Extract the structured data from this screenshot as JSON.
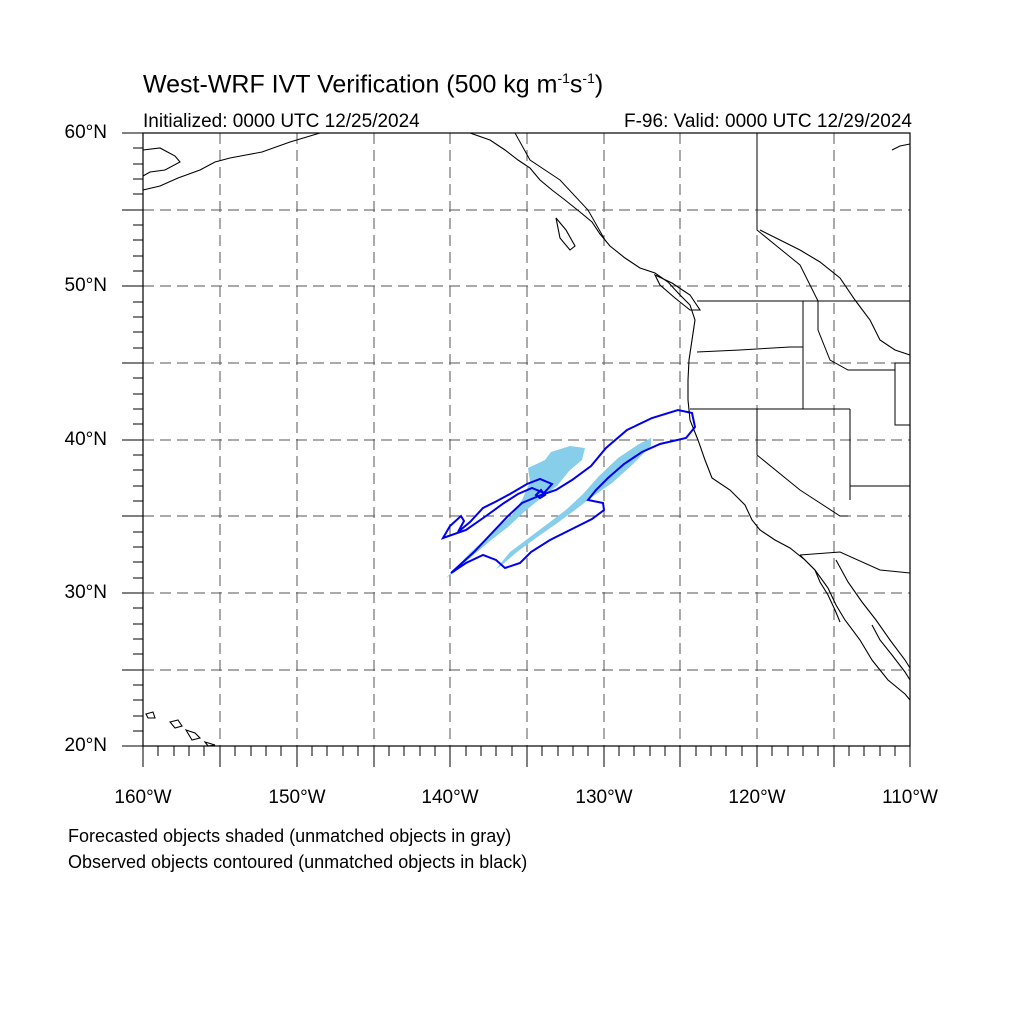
{
  "title": {
    "prefix": "West-WRF IVT Verification (500 kg m",
    "exp1": "-1",
    "mid": "s",
    "exp2": "-1",
    "suffix": ")"
  },
  "subtitle_left": "Initialized: 0000 UTC 12/25/2024",
  "subtitle_right": "F-96: Valid: 0000 UTC 12/29/2024",
  "lat_labels": [
    "60°N",
    "50°N",
    "40°N",
    "30°N",
    "20°N"
  ],
  "lon_labels": [
    "160°W",
    "150°W",
    "140°W",
    "130°W",
    "120°W",
    "110°W"
  ],
  "notes": [
    "Forecasted objects shaded (unmatched objects in gray)",
    "Observed objects contoured (unmatched objects in black)"
  ],
  "map_extent": {
    "lon_min": -160,
    "lon_max": -110,
    "lat_min": 20,
    "lat_max": 60
  },
  "colors": {
    "forecast_shade": "#87ceeb",
    "observed_contour": "#0000ee",
    "coast": "#000000",
    "grid": "#555555"
  }
}
